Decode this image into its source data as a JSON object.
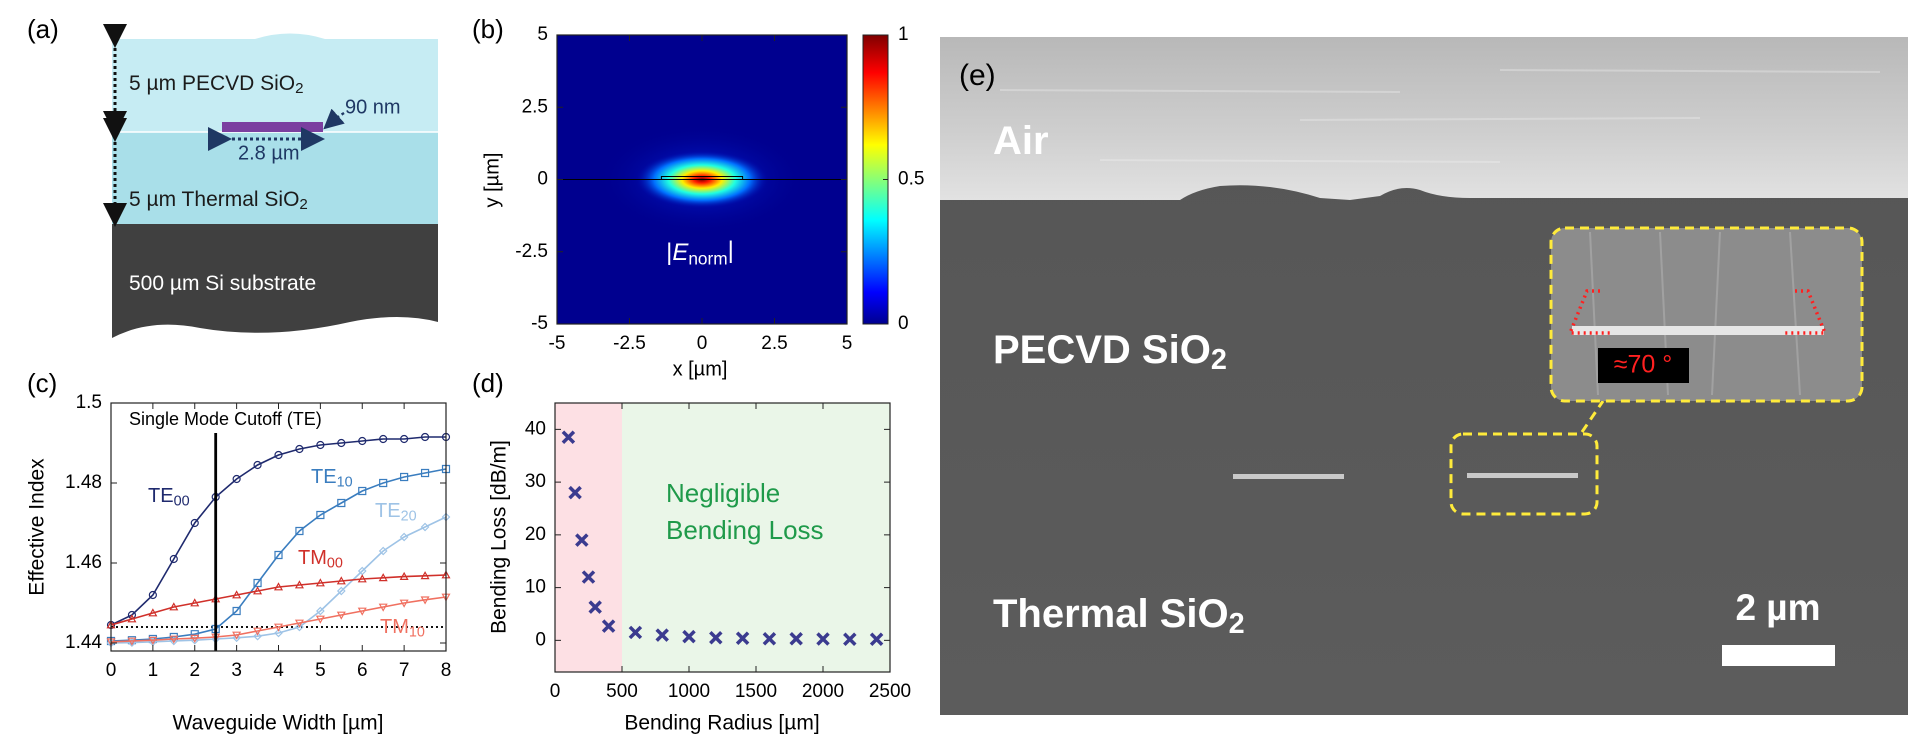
{
  "panel_labels": [
    "(a)",
    "(b)",
    "(c)",
    "(d)",
    "(e)"
  ],
  "schematic": {
    "layers": [
      {
        "text": "5 µm PECVD SiO",
        "sub": "2"
      },
      {
        "text": "5 µm Thermal SiO",
        "sub": "2"
      },
      {
        "text": "500 µm Si substrate"
      }
    ],
    "height_label": "90 nm",
    "width_label": "2.8 µm"
  },
  "chart_data": [
    {
      "type": "heatmap",
      "xlabel": "x [µm]",
      "ylabel": "y [µm]",
      "xlim": [
        -5,
        5
      ],
      "ylim": [
        -5,
        5
      ],
      "xticks": [
        -5,
        -2.5,
        0,
        2.5,
        5
      ],
      "yticks": [
        -5,
        -2.5,
        0,
        2.5,
        5
      ],
      "colormap": "jet",
      "colorbar": {
        "lim": [
          0,
          1
        ],
        "ticks": [
          0,
          0.5,
          1
        ]
      },
      "annotation": {
        "pre": "|",
        "italic": "E",
        "sub": "norm",
        "post": "|"
      }
    },
    {
      "type": "line",
      "xlabel": "Waveguide Width [µm]",
      "ylabel": "Effective Index",
      "xlim": [
        0,
        8
      ],
      "ylim": [
        1.438,
        1.5
      ],
      "xticks": [
        0,
        1,
        2,
        3,
        4,
        5,
        6,
        7,
        8
      ],
      "yticks": [
        1.44,
        1.46,
        1.48,
        1.5
      ],
      "x": [
        0,
        0.5,
        1,
        1.5,
        2,
        2.5,
        3,
        3.5,
        4,
        4.5,
        5,
        5.5,
        6,
        6.5,
        7,
        7.5,
        8
      ],
      "cutoff": {
        "x": 2.5,
        "label": "Single Mode Cutoff (TE)"
      },
      "hline": 1.444,
      "series": [
        {
          "name": "TE",
          "sub": "00",
          "color": "#1f2a6e",
          "marker": "circle",
          "values": [
            1.4445,
            1.447,
            1.452,
            1.461,
            1.47,
            1.4765,
            1.481,
            1.4845,
            1.487,
            1.4885,
            1.4895,
            1.49,
            1.4905,
            1.491,
            1.491,
            1.4915,
            1.4915
          ]
        },
        {
          "name": "TE",
          "sub": "10",
          "color": "#3a7dbf",
          "marker": "square",
          "values": [
            1.4405,
            1.4407,
            1.441,
            1.4415,
            1.4422,
            1.4435,
            1.448,
            1.455,
            1.462,
            1.468,
            1.472,
            1.475,
            1.478,
            1.48,
            1.4815,
            1.4825,
            1.4835
          ]
        },
        {
          "name": "TE",
          "sub": "20",
          "color": "#9ec3e6",
          "marker": "diamond",
          "values": [
            1.44,
            1.4401,
            1.4403,
            1.4405,
            1.4407,
            1.441,
            1.4413,
            1.4417,
            1.4425,
            1.444,
            1.448,
            1.453,
            1.458,
            1.463,
            1.4665,
            1.469,
            1.4715
          ]
        },
        {
          "name": "TM",
          "sub": "00",
          "color": "#d0302a",
          "marker": "triangle-up",
          "values": [
            1.4445,
            1.446,
            1.4475,
            1.449,
            1.45,
            1.451,
            1.452,
            1.453,
            1.454,
            1.4545,
            1.455,
            1.4555,
            1.456,
            1.4563,
            1.4566,
            1.4568,
            1.457
          ]
        },
        {
          "name": "TM",
          "sub": "10",
          "color": "#f07060",
          "marker": "triangle-down",
          "values": [
            1.4403,
            1.4405,
            1.4407,
            1.441,
            1.4412,
            1.4415,
            1.442,
            1.443,
            1.444,
            1.445,
            1.446,
            1.447,
            1.448,
            1.449,
            1.45,
            1.4508,
            1.4515
          ]
        }
      ]
    },
    {
      "type": "scatter",
      "xlabel": "Bending Radius [µm]",
      "ylabel": "Bending Loss [dB/m]",
      "xlim": [
        0,
        2500
      ],
      "ylim": [
        -6,
        45
      ],
      "xticks": [
        0,
        500,
        1000,
        1500,
        2000,
        2500
      ],
      "yticks": [
        0,
        10,
        20,
        30,
        40
      ],
      "color": "#3b3b8f",
      "x": [
        100,
        150,
        200,
        250,
        300,
        400,
        600,
        800,
        1000,
        1200,
        1400,
        1600,
        1800,
        2000,
        2200,
        2400
      ],
      "values": [
        38.5,
        28,
        19,
        12,
        6.3,
        2.7,
        1.5,
        1,
        0.7,
        0.5,
        0.4,
        0.3,
        0.3,
        0.25,
        0.2,
        0.2
      ],
      "regions": [
        {
          "x": [
            0,
            500
          ],
          "color": "#fde0e4"
        },
        {
          "x": [
            500,
            2500
          ],
          "color": "#eaf6e8"
        }
      ],
      "annotation": {
        "lines": [
          "Negligible",
          "Bending Loss"
        ],
        "color": "#1f9a4a"
      }
    }
  ],
  "sem": {
    "labels": [
      {
        "text": "Air"
      },
      {
        "text": "PECVD SiO",
        "sub": "2"
      },
      {
        "text": "Thermal SiO",
        "sub": "2"
      }
    ],
    "angle_label": "≈70 °",
    "scale_bar": "2 µm"
  }
}
